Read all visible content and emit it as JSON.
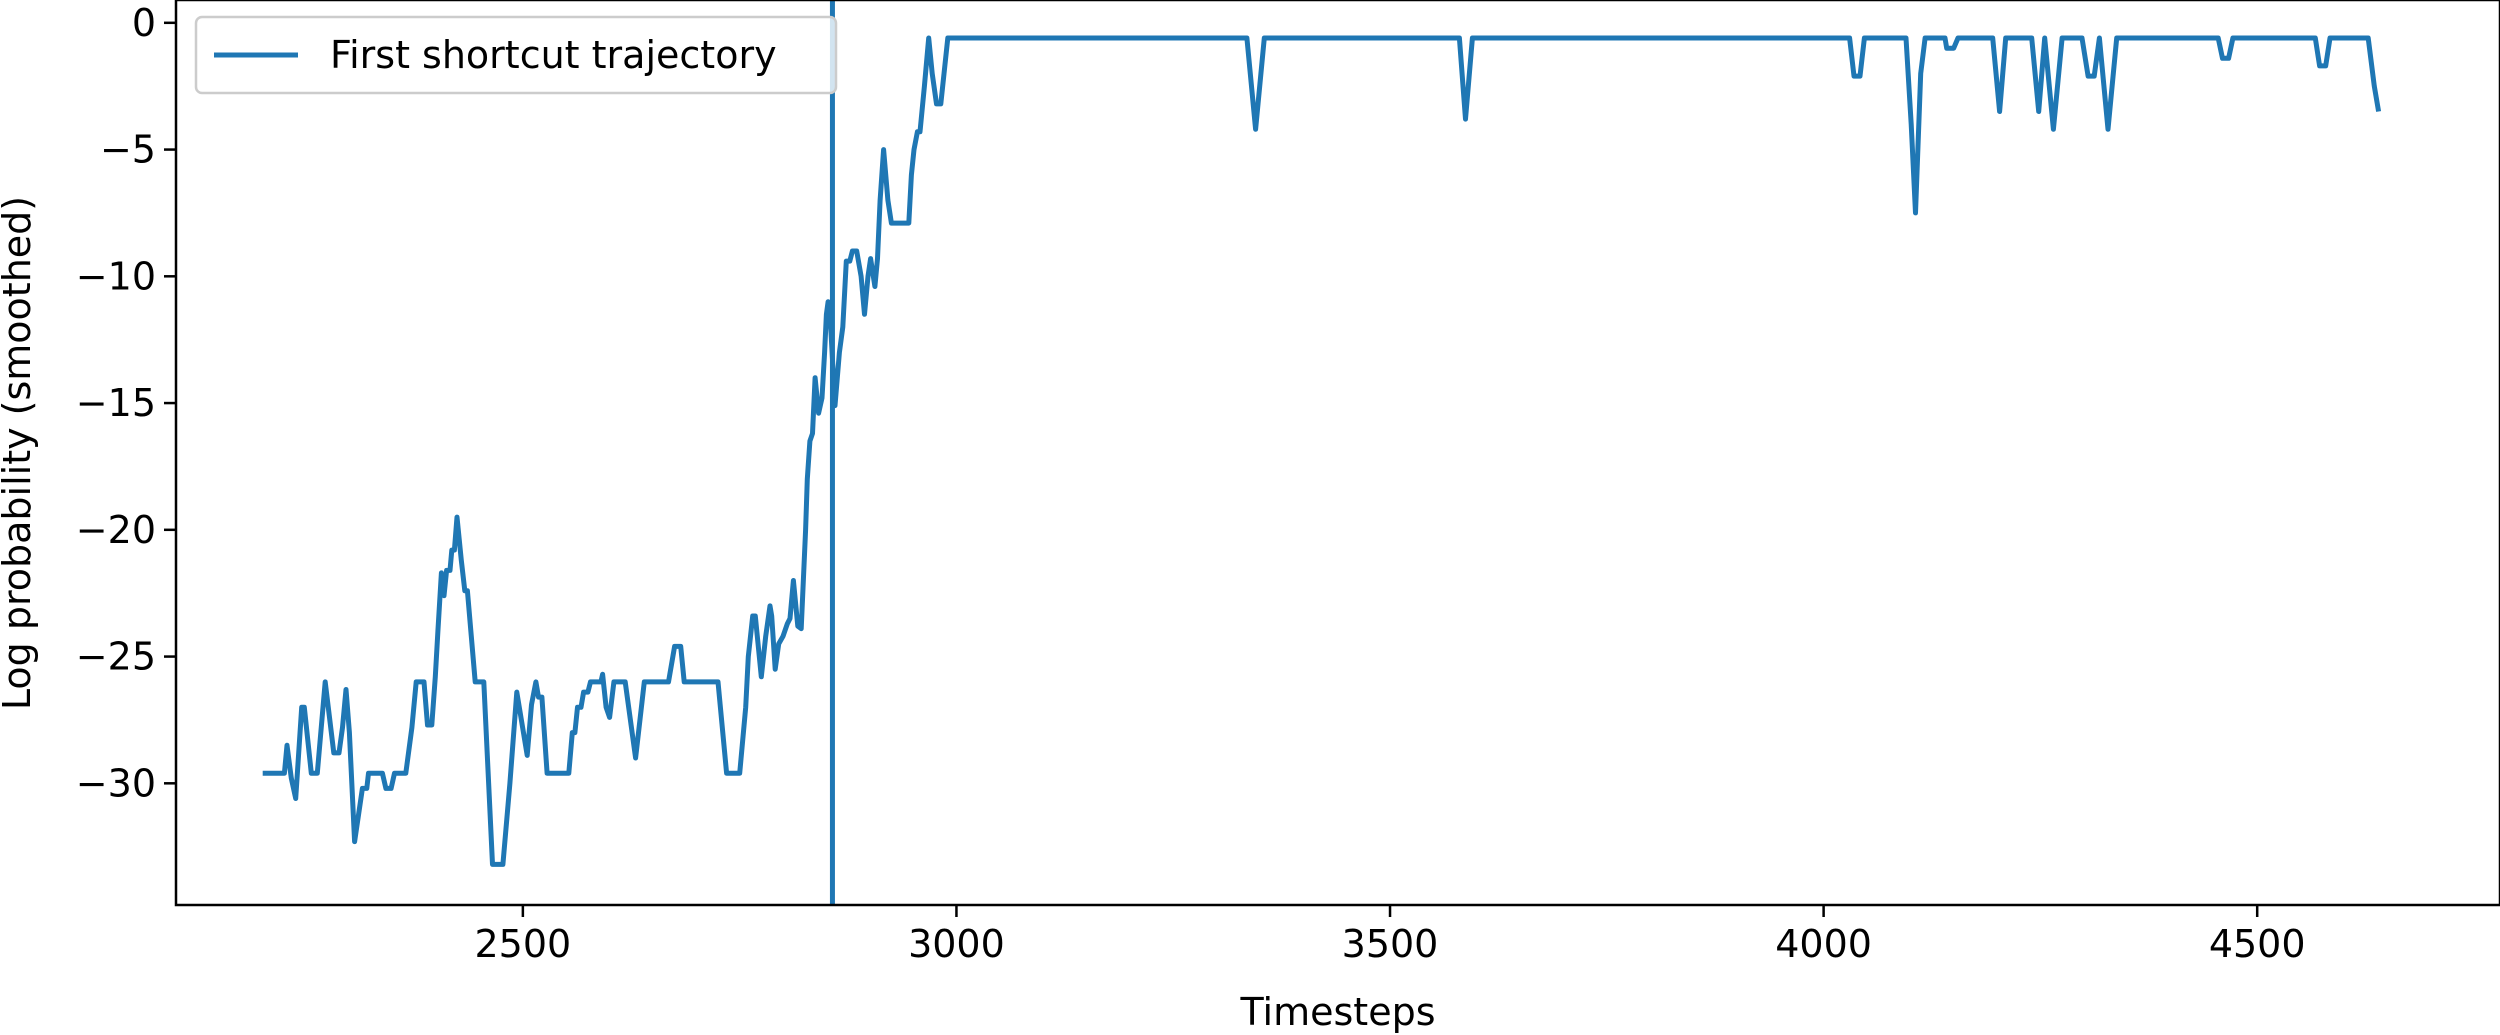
{
  "chart_data": {
    "type": "line",
    "title": "",
    "xlabel": "Timesteps",
    "ylabel": "Log probability (smoothed)",
    "xlim": [
      2100,
      4780
    ],
    "ylim": [
      -34.8,
      0.9
    ],
    "x_ticks": [
      2500,
      3000,
      3500,
      4000,
      4500
    ],
    "y_ticks": [
      0,
      -5,
      -10,
      -15,
      -20,
      -25,
      -30
    ],
    "x_tick_labels": [
      "2500",
      "3000",
      "3500",
      "4000",
      "4500"
    ],
    "y_tick_labels": [
      "0",
      "−5",
      "−10",
      "−15",
      "−20",
      "−25",
      "−30"
    ],
    "grid": false,
    "legend_position": "top-left",
    "line_color": "#1f77b4",
    "vline": {
      "x": 2857,
      "color": "#1f77b4"
    },
    "series": [
      {
        "name": "First shortcut trajectory",
        "points": [
          [
            2200,
            -29.6
          ],
          [
            2225,
            -29.6
          ],
          [
            2228,
            -28.5
          ],
          [
            2233,
            -29.8
          ],
          [
            2238,
            -30.6
          ],
          [
            2245,
            -27.0
          ],
          [
            2248,
            -27.0
          ],
          [
            2256,
            -29.6
          ],
          [
            2263,
            -29.6
          ],
          [
            2272,
            -26.0
          ],
          [
            2282,
            -28.8
          ],
          [
            2288,
            -28.8
          ],
          [
            2292,
            -27.8
          ],
          [
            2296,
            -26.3
          ],
          [
            2300,
            -28.0
          ],
          [
            2306,
            -32.3
          ],
          [
            2315,
            -30.2
          ],
          [
            2320,
            -30.2
          ],
          [
            2322,
            -29.6
          ],
          [
            2338,
            -29.6
          ],
          [
            2342,
            -30.2
          ],
          [
            2348,
            -30.2
          ],
          [
            2352,
            -29.6
          ],
          [
            2365,
            -29.6
          ],
          [
            2372,
            -27.8
          ],
          [
            2377,
            -26.0
          ],
          [
            2386,
            -26.0
          ],
          [
            2390,
            -27.7
          ],
          [
            2395,
            -27.7
          ],
          [
            2399,
            -25.8
          ],
          [
            2402,
            -24.0
          ],
          [
            2406,
            -21.7
          ],
          [
            2409,
            -22.6
          ],
          [
            2412,
            -21.6
          ],
          [
            2416,
            -21.6
          ],
          [
            2418,
            -20.8
          ],
          [
            2421,
            -20.8
          ],
          [
            2424,
            -19.5
          ],
          [
            2429,
            -21.2
          ],
          [
            2433,
            -22.4
          ],
          [
            2436,
            -22.4
          ],
          [
            2445,
            -26.0
          ],
          [
            2455,
            -26.0
          ],
          [
            2465,
            -33.2
          ],
          [
            2477,
            -33.2
          ],
          [
            2485,
            -30.0
          ],
          [
            2493,
            -26.4
          ],
          [
            2505,
            -28.9
          ],
          [
            2510,
            -26.9
          ],
          [
            2515,
            -26.0
          ],
          [
            2518,
            -26.6
          ],
          [
            2522,
            -26.6
          ],
          [
            2528,
            -29.6
          ],
          [
            2540,
            -29.6
          ],
          [
            2553,
            -29.6
          ],
          [
            2557,
            -28.0
          ],
          [
            2560,
            -28.0
          ],
          [
            2563,
            -27.0
          ],
          [
            2567,
            -27.0
          ],
          [
            2570,
            -26.4
          ],
          [
            2575,
            -26.4
          ],
          [
            2578,
            -26.0
          ],
          [
            2590,
            -26.0
          ],
          [
            2592,
            -25.7
          ],
          [
            2596,
            -27.0
          ],
          [
            2600,
            -27.4
          ],
          [
            2605,
            -26.0
          ],
          [
            2618,
            -26.0
          ],
          [
            2630,
            -29.0
          ],
          [
            2640,
            -26.0
          ],
          [
            2668,
            -26.0
          ],
          [
            2675,
            -24.6
          ],
          [
            2682,
            -24.6
          ],
          [
            2686,
            -26.0
          ],
          [
            2725,
            -26.0
          ],
          [
            2735,
            -29.6
          ],
          [
            2750,
            -29.6
          ],
          [
            2757,
            -27.0
          ],
          [
            2760,
            -25.0
          ],
          [
            2765,
            -23.4
          ],
          [
            2768,
            -23.4
          ],
          [
            2775,
            -25.8
          ],
          [
            2780,
            -24.2
          ],
          [
            2785,
            -23.0
          ],
          [
            2787,
            -23.4
          ],
          [
            2791,
            -25.5
          ],
          [
            2795,
            -24.5
          ],
          [
            2800,
            -24.2
          ],
          [
            2805,
            -23.7
          ],
          [
            2808,
            -23.5
          ],
          [
            2812,
            -22.0
          ],
          [
            2817,
            -23.8
          ],
          [
            2821,
            -23.9
          ],
          [
            2826,
            -20.0
          ],
          [
            2828,
            -18.0
          ],
          [
            2831,
            -16.5
          ],
          [
            2834,
            -16.2
          ],
          [
            2837,
            -14.0
          ],
          [
            2841,
            -15.4
          ],
          [
            2845,
            -14.8
          ],
          [
            2848,
            -13.0
          ],
          [
            2850,
            -11.5
          ],
          [
            2852,
            -11.0
          ],
          [
            2855,
            -12.0
          ],
          [
            2860,
            -15.1
          ],
          [
            2865,
            -13.0
          ],
          [
            2869,
            -12.0
          ],
          [
            2873,
            -9.4
          ],
          [
            2877,
            -9.4
          ],
          [
            2880,
            -9.0
          ],
          [
            2885,
            -9.0
          ],
          [
            2890,
            -10.0
          ],
          [
            2894,
            -11.5
          ],
          [
            2898,
            -10.0
          ],
          [
            2901,
            -9.3
          ],
          [
            2906,
            -10.4
          ],
          [
            2909,
            -9.3
          ],
          [
            2912,
            -7.0
          ],
          [
            2916,
            -5.0
          ],
          [
            2921,
            -7.0
          ],
          [
            2925,
            -7.9
          ],
          [
            2945,
            -7.9
          ],
          [
            2948,
            -6.0
          ],
          [
            2951,
            -5.0
          ],
          [
            2955,
            -4.3
          ],
          [
            2958,
            -4.3
          ],
          [
            2963,
            -2.5
          ],
          [
            2968,
            -0.6
          ],
          [
            2972,
            -2.0
          ],
          [
            2977,
            -3.2
          ],
          [
            2982,
            -3.2
          ],
          [
            2990,
            -0.6
          ],
          [
            3335,
            -0.6
          ],
          [
            3345,
            -4.2
          ],
          [
            3355,
            -0.6
          ],
          [
            3580,
            -0.6
          ],
          [
            3587,
            -3.8
          ],
          [
            3595,
            -0.6
          ],
          [
            4030,
            -0.6
          ],
          [
            4035,
            -2.1
          ],
          [
            4042,
            -2.1
          ],
          [
            4047,
            -0.6
          ],
          [
            4095,
            -0.6
          ],
          [
            4101,
            -4.0
          ],
          [
            4106,
            -7.5
          ],
          [
            4112,
            -2.0
          ],
          [
            4117,
            -0.6
          ],
          [
            4140,
            -0.6
          ],
          [
            4142,
            -1.0
          ],
          [
            4150,
            -1.0
          ],
          [
            4155,
            -0.6
          ],
          [
            4195,
            -0.6
          ],
          [
            4203,
            -3.5
          ],
          [
            4210,
            -0.6
          ],
          [
            4240,
            -0.6
          ],
          [
            4248,
            -3.5
          ],
          [
            4255,
            -0.6
          ],
          [
            4265,
            -4.2
          ],
          [
            4275,
            -0.6
          ],
          [
            4298,
            -0.6
          ],
          [
            4305,
            -2.1
          ],
          [
            4312,
            -2.1
          ],
          [
            4318,
            -0.6
          ],
          [
            4328,
            -4.2
          ],
          [
            4338,
            -0.6
          ],
          [
            4455,
            -0.6
          ],
          [
            4460,
            -1.4
          ],
          [
            4467,
            -1.4
          ],
          [
            4472,
            -0.6
          ],
          [
            4567,
            -0.6
          ],
          [
            4572,
            -1.7
          ],
          [
            4579,
            -1.7
          ],
          [
            4584,
            -0.6
          ],
          [
            4628,
            -0.6
          ],
          [
            4635,
            -2.5
          ],
          [
            4640,
            -3.5
          ]
        ]
      }
    ]
  }
}
